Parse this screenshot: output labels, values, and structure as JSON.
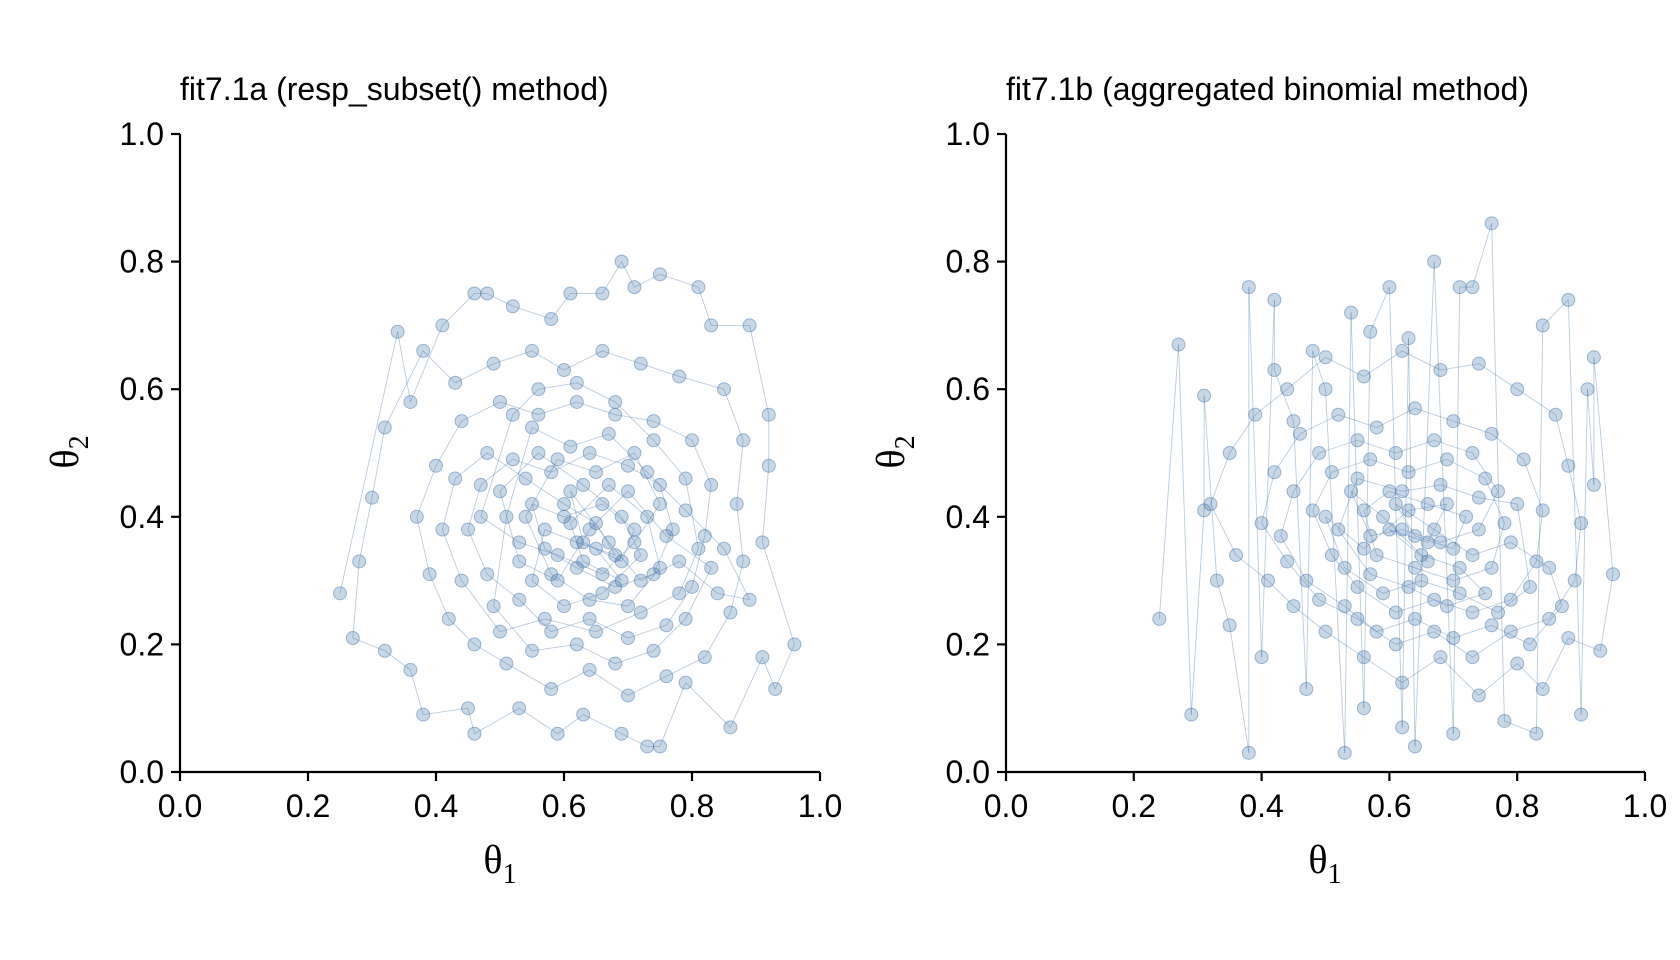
{
  "chart_data": [
    {
      "type": "scatter",
      "title": "fit7.1a (resp_subset() method)",
      "xlabel": "θ",
      "xlabel_subscript": "1",
      "ylabel": "θ",
      "ylabel_subscript": "2",
      "xlim": [
        0.0,
        1.0
      ],
      "ylim": [
        0.0,
        1.0
      ],
      "xticks": [
        "0.0",
        "0.2",
        "0.4",
        "0.6",
        "0.8",
        "1.0"
      ],
      "yticks": [
        "0.0",
        "0.2",
        "0.4",
        "0.6",
        "0.8",
        "1.0"
      ],
      "grid": false,
      "connected_sequence": true,
      "color": "#3a6ea5",
      "points": [
        [
          0.25,
          0.28
        ],
        [
          0.34,
          0.69
        ],
        [
          0.36,
          0.58
        ],
        [
          0.41,
          0.7
        ],
        [
          0.46,
          0.75
        ],
        [
          0.48,
          0.75
        ],
        [
          0.52,
          0.73
        ],
        [
          0.58,
          0.71
        ],
        [
          0.61,
          0.75
        ],
        [
          0.66,
          0.75
        ],
        [
          0.69,
          0.8
        ],
        [
          0.71,
          0.76
        ],
        [
          0.75,
          0.78
        ],
        [
          0.81,
          0.76
        ],
        [
          0.83,
          0.7
        ],
        [
          0.89,
          0.7
        ],
        [
          0.92,
          0.56
        ],
        [
          0.92,
          0.48
        ],
        [
          0.91,
          0.36
        ],
        [
          0.96,
          0.2
        ],
        [
          0.93,
          0.13
        ],
        [
          0.91,
          0.18
        ],
        [
          0.86,
          0.07
        ],
        [
          0.79,
          0.14
        ],
        [
          0.75,
          0.04
        ],
        [
          0.73,
          0.04
        ],
        [
          0.69,
          0.06
        ],
        [
          0.63,
          0.09
        ],
        [
          0.59,
          0.06
        ],
        [
          0.53,
          0.1
        ],
        [
          0.46,
          0.06
        ],
        [
          0.45,
          0.1
        ],
        [
          0.38,
          0.09
        ],
        [
          0.36,
          0.16
        ],
        [
          0.32,
          0.19
        ],
        [
          0.27,
          0.21
        ],
        [
          0.28,
          0.33
        ],
        [
          0.3,
          0.43
        ],
        [
          0.32,
          0.54
        ],
        [
          0.38,
          0.66
        ],
        [
          0.43,
          0.61
        ],
        [
          0.49,
          0.64
        ],
        [
          0.55,
          0.66
        ],
        [
          0.6,
          0.63
        ],
        [
          0.66,
          0.66
        ],
        [
          0.72,
          0.64
        ],
        [
          0.78,
          0.62
        ],
        [
          0.85,
          0.6
        ],
        [
          0.88,
          0.52
        ],
        [
          0.87,
          0.42
        ],
        [
          0.88,
          0.33
        ],
        [
          0.86,
          0.25
        ],
        [
          0.82,
          0.18
        ],
        [
          0.76,
          0.15
        ],
        [
          0.7,
          0.12
        ],
        [
          0.64,
          0.16
        ],
        [
          0.58,
          0.13
        ],
        [
          0.51,
          0.17
        ],
        [
          0.46,
          0.2
        ],
        [
          0.42,
          0.24
        ],
        [
          0.39,
          0.31
        ],
        [
          0.37,
          0.4
        ],
        [
          0.4,
          0.48
        ],
        [
          0.44,
          0.55
        ],
        [
          0.5,
          0.58
        ],
        [
          0.56,
          0.56
        ],
        [
          0.62,
          0.58
        ],
        [
          0.68,
          0.56
        ],
        [
          0.74,
          0.55
        ],
        [
          0.8,
          0.52
        ],
        [
          0.83,
          0.45
        ],
        [
          0.82,
          0.37
        ],
        [
          0.8,
          0.29
        ],
        [
          0.76,
          0.23
        ],
        [
          0.7,
          0.21
        ],
        [
          0.64,
          0.24
        ],
        [
          0.58,
          0.22
        ],
        [
          0.53,
          0.27
        ],
        [
          0.48,
          0.31
        ],
        [
          0.45,
          0.38
        ],
        [
          0.47,
          0.45
        ],
        [
          0.52,
          0.49
        ],
        [
          0.58,
          0.47
        ],
        [
          0.64,
          0.5
        ],
        [
          0.7,
          0.48
        ],
        [
          0.75,
          0.45
        ],
        [
          0.77,
          0.38
        ],
        [
          0.74,
          0.31
        ],
        [
          0.68,
          0.29
        ],
        [
          0.62,
          0.32
        ],
        [
          0.57,
          0.35
        ],
        [
          0.55,
          0.42
        ],
        [
          0.6,
          0.4
        ],
        [
          0.66,
          0.42
        ],
        [
          0.71,
          0.38
        ],
        [
          0.69,
          0.33
        ],
        [
          0.63,
          0.36
        ],
        [
          0.61,
          0.44
        ],
        [
          0.67,
          0.36
        ],
        [
          0.72,
          0.3
        ],
        [
          0.78,
          0.33
        ],
        [
          0.84,
          0.28
        ],
        [
          0.89,
          0.27
        ],
        [
          0.85,
          0.35
        ],
        [
          0.79,
          0.41
        ],
        [
          0.73,
          0.47
        ],
        [
          0.67,
          0.53
        ],
        [
          0.61,
          0.51
        ],
        [
          0.55,
          0.54
        ],
        [
          0.51,
          0.4
        ],
        [
          0.49,
          0.26
        ],
        [
          0.55,
          0.19
        ],
        [
          0.62,
          0.2
        ],
        [
          0.68,
          0.17
        ],
        [
          0.74,
          0.19
        ],
        [
          0.79,
          0.24
        ],
        [
          0.83,
          0.32
        ],
        [
          0.76,
          0.37
        ],
        [
          0.7,
          0.44
        ],
        [
          0.64,
          0.38
        ],
        [
          0.59,
          0.3
        ],
        [
          0.53,
          0.33
        ],
        [
          0.5,
          0.44
        ],
        [
          0.56,
          0.5
        ],
        [
          0.63,
          0.45
        ],
        [
          0.69,
          0.4
        ],
        [
          0.72,
          0.34
        ],
        [
          0.66,
          0.28
        ],
        [
          0.6,
          0.26
        ],
        [
          0.55,
          0.3
        ],
        [
          0.57,
          0.38
        ],
        [
          0.62,
          0.36
        ],
        [
          0.68,
          0.34
        ],
        [
          0.65,
          0.39
        ],
        [
          0.6,
          0.42
        ],
        [
          0.54,
          0.46
        ],
        [
          0.48,
          0.5
        ],
        [
          0.43,
          0.46
        ],
        [
          0.41,
          0.38
        ],
        [
          0.44,
          0.3
        ],
        [
          0.5,
          0.22
        ],
        [
          0.57,
          0.24
        ],
        [
          0.65,
          0.22
        ],
        [
          0.72,
          0.25
        ],
        [
          0.78,
          0.28
        ],
        [
          0.81,
          0.35
        ],
        [
          0.79,
          0.46
        ],
        [
          0.74,
          0.52
        ],
        [
          0.68,
          0.58
        ],
        [
          0.62,
          0.61
        ],
        [
          0.56,
          0.6
        ],
        [
          0.52,
          0.56
        ],
        [
          0.47,
          0.4
        ],
        [
          0.53,
          0.36
        ],
        [
          0.59,
          0.34
        ],
        [
          0.66,
          0.31
        ],
        [
          0.71,
          0.36
        ],
        [
          0.75,
          0.42
        ],
        [
          0.71,
          0.5
        ],
        [
          0.65,
          0.47
        ],
        [
          0.59,
          0.49
        ],
        [
          0.54,
          0.4
        ],
        [
          0.58,
          0.31
        ],
        [
          0.64,
          0.27
        ],
        [
          0.7,
          0.26
        ],
        [
          0.75,
          0.32
        ],
        [
          0.73,
          0.4
        ],
        [
          0.67,
          0.45
        ],
        [
          0.61,
          0.39
        ],
        [
          0.63,
          0.33
        ],
        [
          0.69,
          0.3
        ],
        [
          0.65,
          0.35
        ]
      ]
    },
    {
      "type": "scatter",
      "title": "fit7.1b (aggregated binomial method)",
      "xlabel": "θ",
      "xlabel_subscript": "1",
      "ylabel": "θ",
      "ylabel_subscript": "2",
      "xlim": [
        0.0,
        1.0
      ],
      "ylim": [
        0.0,
        1.0
      ],
      "xticks": [
        "0.0",
        "0.2",
        "0.4",
        "0.6",
        "0.8",
        "1.0"
      ],
      "yticks": [
        "0.0",
        "0.2",
        "0.4",
        "0.6",
        "0.8",
        "1.0"
      ],
      "grid": false,
      "connected_sequence": true,
      "color": "#3a6ea5",
      "points": [
        [
          0.24,
          0.24
        ],
        [
          0.27,
          0.67
        ],
        [
          0.29,
          0.09
        ],
        [
          0.31,
          0.41
        ],
        [
          0.31,
          0.59
        ],
        [
          0.33,
          0.3
        ],
        [
          0.35,
          0.23
        ],
        [
          0.38,
          0.03
        ],
        [
          0.38,
          0.76
        ],
        [
          0.4,
          0.18
        ],
        [
          0.42,
          0.74
        ],
        [
          0.42,
          0.63
        ],
        [
          0.45,
          0.55
        ],
        [
          0.47,
          0.13
        ],
        [
          0.48,
          0.66
        ],
        [
          0.5,
          0.6
        ],
        [
          0.53,
          0.03
        ],
        [
          0.54,
          0.72
        ],
        [
          0.56,
          0.1
        ],
        [
          0.57,
          0.69
        ],
        [
          0.6,
          0.76
        ],
        [
          0.62,
          0.07
        ],
        [
          0.63,
          0.68
        ],
        [
          0.64,
          0.04
        ],
        [
          0.67,
          0.8
        ],
        [
          0.7,
          0.06
        ],
        [
          0.71,
          0.76
        ],
        [
          0.73,
          0.76
        ],
        [
          0.76,
          0.86
        ],
        [
          0.78,
          0.08
        ],
        [
          0.83,
          0.06
        ],
        [
          0.84,
          0.7
        ],
        [
          0.88,
          0.74
        ],
        [
          0.9,
          0.09
        ],
        [
          0.91,
          0.6
        ],
        [
          0.92,
          0.45
        ],
        [
          0.92,
          0.65
        ],
        [
          0.95,
          0.31
        ],
        [
          0.93,
          0.19
        ],
        [
          0.88,
          0.21
        ],
        [
          0.84,
          0.13
        ],
        [
          0.8,
          0.17
        ],
        [
          0.74,
          0.12
        ],
        [
          0.68,
          0.18
        ],
        [
          0.62,
          0.14
        ],
        [
          0.56,
          0.18
        ],
        [
          0.5,
          0.22
        ],
        [
          0.45,
          0.26
        ],
        [
          0.41,
          0.3
        ],
        [
          0.36,
          0.34
        ],
        [
          0.32,
          0.42
        ],
        [
          0.35,
          0.5
        ],
        [
          0.39,
          0.56
        ],
        [
          0.44,
          0.6
        ],
        [
          0.5,
          0.65
        ],
        [
          0.56,
          0.62
        ],
        [
          0.62,
          0.66
        ],
        [
          0.68,
          0.63
        ],
        [
          0.74,
          0.64
        ],
        [
          0.8,
          0.6
        ],
        [
          0.86,
          0.56
        ],
        [
          0.88,
          0.48
        ],
        [
          0.9,
          0.39
        ],
        [
          0.89,
          0.3
        ],
        [
          0.85,
          0.24
        ],
        [
          0.79,
          0.22
        ],
        [
          0.73,
          0.18
        ],
        [
          0.67,
          0.22
        ],
        [
          0.61,
          0.2
        ],
        [
          0.55,
          0.24
        ],
        [
          0.49,
          0.27
        ],
        [
          0.44,
          0.33
        ],
        [
          0.4,
          0.39
        ],
        [
          0.42,
          0.47
        ],
        [
          0.46,
          0.53
        ],
        [
          0.52,
          0.56
        ],
        [
          0.58,
          0.54
        ],
        [
          0.64,
          0.57
        ],
        [
          0.7,
          0.55
        ],
        [
          0.76,
          0.53
        ],
        [
          0.81,
          0.49
        ],
        [
          0.84,
          0.41
        ],
        [
          0.83,
          0.33
        ],
        [
          0.79,
          0.27
        ],
        [
          0.73,
          0.25
        ],
        [
          0.67,
          0.27
        ],
        [
          0.61,
          0.25
        ],
        [
          0.55,
          0.29
        ],
        [
          0.51,
          0.34
        ],
        [
          0.48,
          0.41
        ],
        [
          0.51,
          0.47
        ],
        [
          0.57,
          0.49
        ],
        [
          0.63,
          0.47
        ],
        [
          0.69,
          0.49
        ],
        [
          0.75,
          0.46
        ],
        [
          0.78,
          0.39
        ],
        [
          0.76,
          0.32
        ],
        [
          0.7,
          0.3
        ],
        [
          0.64,
          0.32
        ],
        [
          0.58,
          0.34
        ],
        [
          0.56,
          0.41
        ],
        [
          0.6,
          0.44
        ],
        [
          0.66,
          0.42
        ],
        [
          0.72,
          0.4
        ],
        [
          0.7,
          0.35
        ],
        [
          0.64,
          0.37
        ],
        [
          0.61,
          0.42
        ],
        [
          0.67,
          0.38
        ],
        [
          0.73,
          0.34
        ],
        [
          0.79,
          0.36
        ],
        [
          0.85,
          0.32
        ],
        [
          0.87,
          0.26
        ],
        [
          0.82,
          0.2
        ],
        [
          0.76,
          0.23
        ],
        [
          0.7,
          0.21
        ],
        [
          0.64,
          0.24
        ],
        [
          0.58,
          0.22
        ],
        [
          0.53,
          0.26
        ],
        [
          0.47,
          0.3
        ],
        [
          0.43,
          0.37
        ],
        [
          0.45,
          0.44
        ],
        [
          0.49,
          0.5
        ],
        [
          0.55,
          0.52
        ],
        [
          0.61,
          0.5
        ],
        [
          0.67,
          0.52
        ],
        [
          0.73,
          0.5
        ],
        [
          0.77,
          0.44
        ],
        [
          0.74,
          0.38
        ],
        [
          0.68,
          0.36
        ],
        [
          0.62,
          0.38
        ],
        [
          0.57,
          0.37
        ],
        [
          0.54,
          0.44
        ],
        [
          0.59,
          0.4
        ],
        [
          0.65,
          0.34
        ],
        [
          0.71,
          0.32
        ],
        [
          0.75,
          0.28
        ],
        [
          0.69,
          0.26
        ],
        [
          0.63,
          0.29
        ],
        [
          0.57,
          0.31
        ],
        [
          0.52,
          0.38
        ],
        [
          0.55,
          0.46
        ],
        [
          0.62,
          0.44
        ],
        [
          0.68,
          0.45
        ],
        [
          0.74,
          0.43
        ],
        [
          0.8,
          0.42
        ],
        [
          0.82,
          0.29
        ],
        [
          0.77,
          0.25
        ],
        [
          0.71,
          0.28
        ],
        [
          0.65,
          0.3
        ],
        [
          0.59,
          0.28
        ],
        [
          0.53,
          0.32
        ],
        [
          0.5,
          0.4
        ],
        [
          0.56,
          0.35
        ],
        [
          0.63,
          0.41
        ],
        [
          0.69,
          0.42
        ],
        [
          0.66,
          0.36
        ],
        [
          0.6,
          0.38
        ],
        [
          0.66,
          0.33
        ]
      ]
    }
  ]
}
